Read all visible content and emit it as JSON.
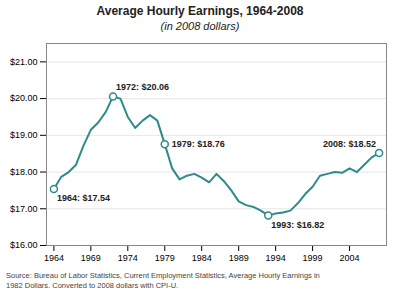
{
  "chart_data": {
    "type": "line",
    "title": "Average Hourly Earnings, 1964-2008",
    "subtitle": "(in 2008 dollars)",
    "caption": "Source: Bureau of Labor Statistics, Current Employment Statistics, Average Hourly Earnings in\n1982 Dollars. Converted to 2008 dollars with CPI-U.",
    "color": "#2e8b8b",
    "x": [
      1964,
      1965,
      1966,
      1967,
      1968,
      1969,
      1970,
      1971,
      1972,
      1973,
      1974,
      1975,
      1976,
      1977,
      1978,
      1979,
      1980,
      1981,
      1982,
      1983,
      1984,
      1985,
      1986,
      1987,
      1988,
      1989,
      1990,
      1991,
      1992,
      1993,
      1994,
      1995,
      1996,
      1997,
      1998,
      1999,
      2000,
      2001,
      2002,
      2003,
      2004,
      2005,
      2006,
      2007,
      2008
    ],
    "values": [
      17.54,
      17.87,
      18.0,
      18.2,
      18.72,
      19.15,
      19.35,
      19.63,
      20.06,
      20.0,
      19.5,
      19.2,
      19.4,
      19.55,
      19.4,
      18.76,
      18.1,
      17.8,
      17.9,
      17.95,
      17.85,
      17.72,
      17.95,
      17.75,
      17.5,
      17.2,
      17.1,
      17.05,
      16.95,
      16.82,
      16.87,
      16.9,
      16.95,
      17.15,
      17.4,
      17.6,
      17.9,
      17.95,
      18.0,
      17.98,
      18.1,
      18.0,
      18.2,
      18.4,
      18.52
    ],
    "annotations": [
      {
        "x": 1964,
        "y": 17.54,
        "text": "1964: $17.54"
      },
      {
        "x": 1972,
        "y": 20.06,
        "text": "1972: $20.06"
      },
      {
        "x": 1979,
        "y": 18.76,
        "text": "1979: $18.76"
      },
      {
        "x": 1993,
        "y": 16.82,
        "text": "1993: $16.82"
      },
      {
        "x": 2008,
        "y": 18.52,
        "text": "2008: $18.52"
      }
    ],
    "xlim": [
      1963,
      2009
    ],
    "xticks": [
      1964,
      1969,
      1974,
      1979,
      1984,
      1989,
      1994,
      1999,
      2004
    ],
    "ylim": [
      16.0,
      21.5
    ],
    "yticks": [
      {
        "value": 16.0,
        "label": "$16.00"
      },
      {
        "value": 17.0,
        "label": "$17.00"
      },
      {
        "value": 18.0,
        "label": "$18.00"
      },
      {
        "value": 19.0,
        "label": "$19.00"
      },
      {
        "value": 20.0,
        "label": "$20.00"
      },
      {
        "value": 21.0,
        "label": "$21.00"
      }
    ],
    "grid": true
  }
}
